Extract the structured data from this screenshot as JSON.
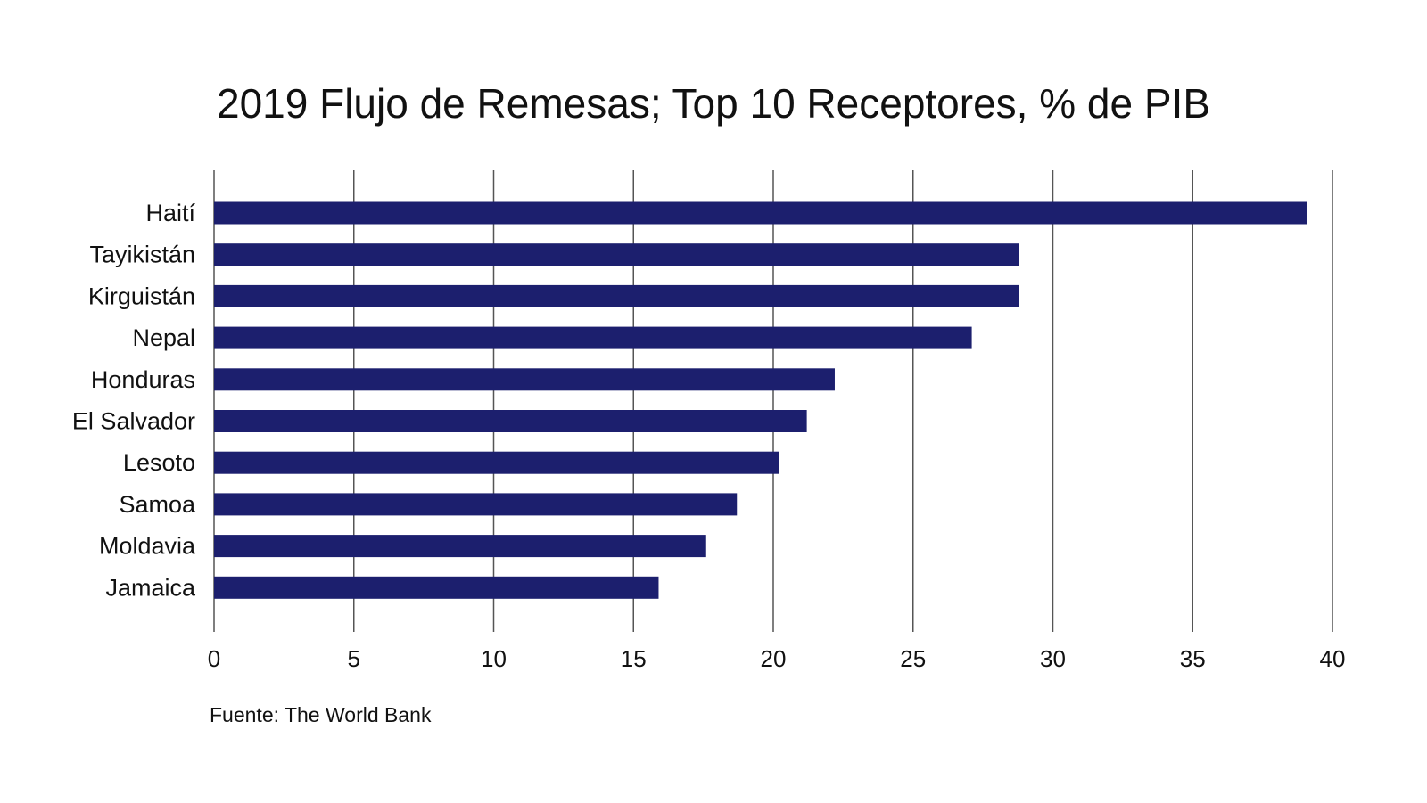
{
  "chart_data": {
    "type": "bar",
    "orientation": "horizontal",
    "title": "2019 Flujo de Remesas; Top 10 Receptores, % de PIB",
    "categories": [
      "Haití",
      "Tayikistán",
      "Kirguistán",
      "Nepal",
      "Honduras",
      "El Salvador",
      "Lesoto",
      "Samoa",
      "Moldavia",
      "Jamaica"
    ],
    "values": [
      39.1,
      28.8,
      28.8,
      27.1,
      22.2,
      21.2,
      20.2,
      18.7,
      17.6,
      15.9
    ],
    "xlabel": "",
    "ylabel": "",
    "xlim": [
      0,
      40
    ],
    "xticks": [
      "0",
      "5",
      "10",
      "15",
      "20",
      "25",
      "30",
      "35",
      "40"
    ],
    "grid": "vertical",
    "legend": "none",
    "bar_color": "#1c1f6e",
    "source": "Fuente: The World Bank"
  }
}
